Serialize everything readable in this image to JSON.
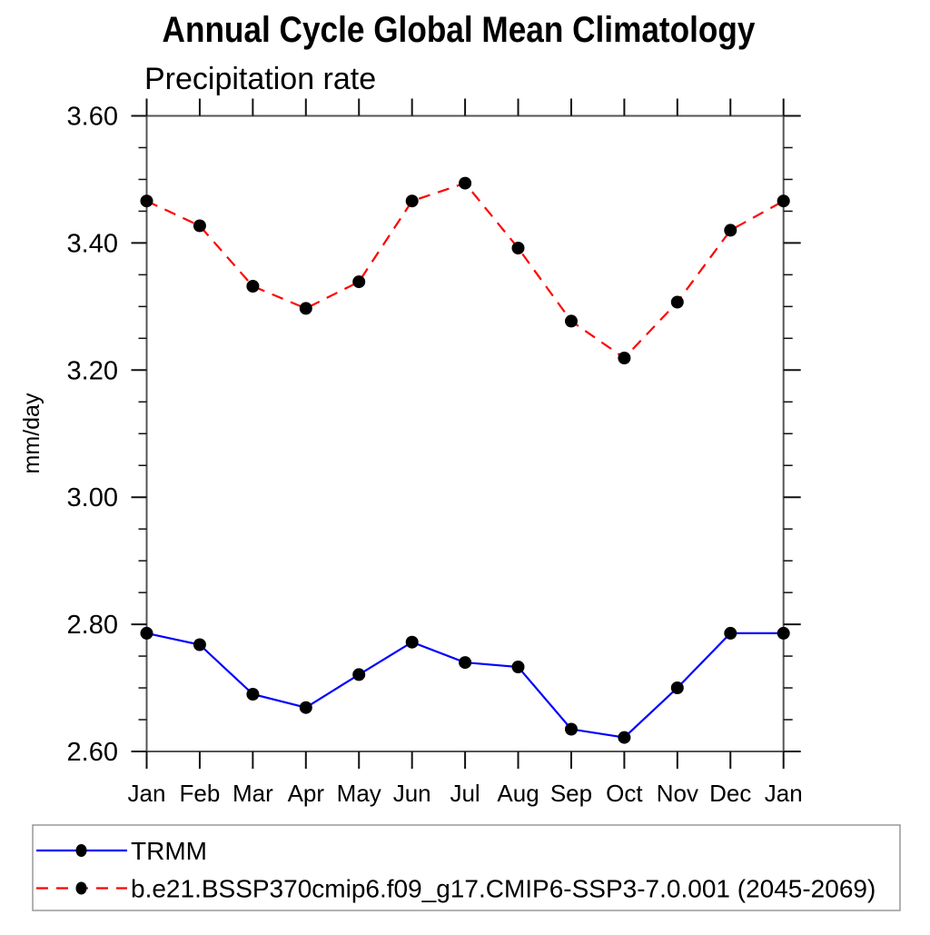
{
  "title": "Annual Cycle Global Mean Climatology",
  "subtitle": "Precipitation rate",
  "y_axis": {
    "label": "mm/day",
    "tick_labels": [
      "3.60",
      "3.40",
      "3.20",
      "3.00",
      "2.80",
      "2.60"
    ]
  },
  "x_axis": {
    "tick_labels": [
      "Jan",
      "Feb",
      "Mar",
      "Apr",
      "May",
      "Jun",
      "Jul",
      "Aug",
      "Sep",
      "Oct",
      "Nov",
      "Dec",
      "Jan"
    ]
  },
  "legend": {
    "entries": [
      {
        "label": "TRMM",
        "line_color": "#0000ff",
        "line_style": "solid",
        "marker": "black-dot"
      },
      {
        "label": "b.e21.BSSP370cmip6.f09_g17.CMIP6-SSP3-7.0.001 (2045-2069)",
        "line_color": "#ff0000",
        "line_style": "dashed",
        "marker": "black-dot"
      }
    ]
  },
  "colors": {
    "trmm_line": "#0000ff",
    "model_line": "#ff0000",
    "marker": "#000000",
    "frame": "#555555",
    "tick": "#111111",
    "legend_border": "#999999"
  },
  "chart_data": {
    "type": "line",
    "title": "Annual Cycle Global Mean Climatology",
    "subtitle": "Precipitation rate",
    "xlabel": "",
    "ylabel": "mm/day",
    "categories": [
      "Jan",
      "Feb",
      "Mar",
      "Apr",
      "May",
      "Jun",
      "Jul",
      "Aug",
      "Sep",
      "Oct",
      "Nov",
      "Dec",
      "Jan"
    ],
    "series": [
      {
        "name": "TRMM",
        "color": "#0000ff",
        "style": "solid",
        "marker": "circle",
        "values": [
          2.786,
          2.768,
          2.69,
          2.669,
          2.721,
          2.772,
          2.74,
          2.733,
          2.635,
          2.622,
          2.7,
          2.786,
          2.786
        ]
      },
      {
        "name": "b.e21.BSSP370cmip6.f09_g17.CMIP6-SSP3-7.0.001 (2045-2069)",
        "color": "#ff0000",
        "style": "dashed",
        "marker": "circle",
        "values": [
          3.466,
          3.427,
          3.332,
          3.297,
          3.339,
          3.466,
          3.494,
          3.392,
          3.277,
          3.219,
          3.307,
          3.42,
          3.466
        ]
      }
    ],
    "ylim": [
      2.6,
      3.6
    ],
    "y_major_step": 0.2,
    "y_minor_step": 0.05,
    "grid": false,
    "legend_position": "bottom",
    "units": "mm/day"
  }
}
